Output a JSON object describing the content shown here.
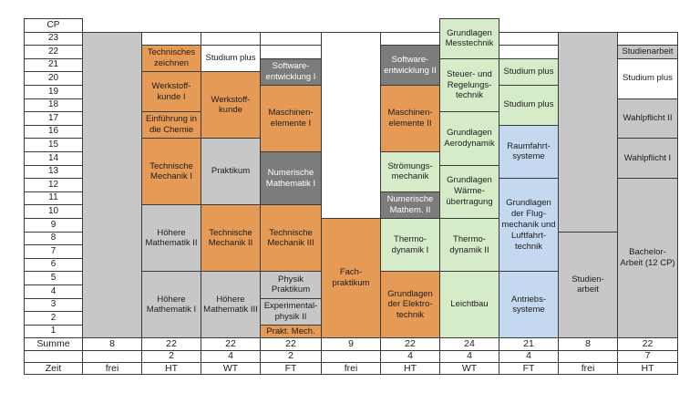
{
  "cp_header": "CP",
  "cp_values": [
    "23",
    "22",
    "21",
    "20",
    "19",
    "18",
    "17",
    "16",
    "15",
    "14",
    "13",
    "12",
    "11",
    "10",
    "9",
    "8",
    "7",
    "6",
    "5",
    "4",
    "3",
    "2",
    "1"
  ],
  "row_labels": {
    "summe": "Summe",
    "zeit": "Zeit"
  },
  "semesters": [
    {
      "summe": "8",
      "extra": "",
      "zeit": "frei",
      "blocks": [
        {
          "label": "",
          "cp": 23,
          "color": "gray",
          "from": 1
        }
      ]
    },
    {
      "summe": "22",
      "extra": "2",
      "zeit": "HT",
      "blocks": [
        {
          "label": "Höhere\nMathematik I",
          "color": "gray",
          "from": 1,
          "to": 5
        },
        {
          "label": "Höhere\nMathematik II",
          "color": "gray",
          "from": 6,
          "to": 10
        },
        {
          "label": "Technische\nMechanik I",
          "color": "orange",
          "from": 11,
          "to": 15
        },
        {
          "label": "Einführung in\ndie Chemie",
          "color": "orange",
          "from": 16,
          "to": 17
        },
        {
          "label": "Werkstoff-\nkunde I",
          "color": "orange",
          "from": 18,
          "to": 20
        },
        {
          "label": "Technisches\nzeichnen",
          "color": "orange",
          "from": 21,
          "to": 22
        },
        {
          "label": "",
          "color": "empty",
          "from": 23,
          "to": 23
        }
      ]
    },
    {
      "summe": "22",
      "extra": "4",
      "zeit": "WT",
      "blocks": [
        {
          "label": "Höhere\nMathematik III",
          "color": "gray",
          "from": 1,
          "to": 5
        },
        {
          "label": "Technische\nMechanik II",
          "color": "orange",
          "from": 6,
          "to": 10
        },
        {
          "label": "Praktikum",
          "color": "gray",
          "from": 11,
          "to": 15
        },
        {
          "label": "Werkstoff-\nkunde",
          "color": "orange",
          "from": 16,
          "to": 20
        },
        {
          "label": "Studium plus",
          "color": "empty",
          "from": 21,
          "to": 22
        },
        {
          "label": "",
          "color": "empty",
          "from": 23,
          "to": 23
        }
      ]
    },
    {
      "summe": "22",
      "extra": "2",
      "zeit": "FT",
      "blocks": [
        {
          "label": "Prakt. Mech.",
          "color": "orange",
          "from": 1,
          "to": 1
        },
        {
          "label": "Experimental-\nphysik II",
          "color": "gray",
          "from": 2,
          "to": 3
        },
        {
          "label": "Physik\nPraktikum",
          "color": "gray",
          "from": 4,
          "to": 5
        },
        {
          "label": "Technische\nMechanik III",
          "color": "orange",
          "from": 6,
          "to": 10
        },
        {
          "label": "Numerische\nMathematik I",
          "color": "dark",
          "from": 11,
          "to": 14
        },
        {
          "label": "Maschinen-\nelemente I",
          "color": "orange",
          "from": 15,
          "to": 19
        },
        {
          "label": "Software-\nentwicklung I",
          "color": "dark",
          "from": 20,
          "to": 21
        },
        {
          "label": "",
          "color": "empty",
          "from": 22,
          "to": 22
        },
        {
          "label": "",
          "color": "empty",
          "from": 23,
          "to": 23
        }
      ]
    },
    {
      "summe": "9",
      "extra": "",
      "zeit": "frei",
      "blocks": [
        {
          "label": "Fach-\npraktikum",
          "color": "orange",
          "from": 1,
          "to": 9
        },
        {
          "label": "",
          "color": "empty",
          "from": 10,
          "to": 23
        }
      ]
    },
    {
      "summe": "22",
      "extra": "4",
      "zeit": "HT",
      "blocks": [
        {
          "label": "Grundlagen\nder Elektro-\ntechnik",
          "color": "orange",
          "from": 1,
          "to": 5
        },
        {
          "label": "Thermo-\ndynamik I",
          "color": "green",
          "from": 6,
          "to": 9
        },
        {
          "label": "Numerische\nMathem. II",
          "color": "dark",
          "from": 10,
          "to": 11
        },
        {
          "label": "Strömungs-\nmechanik",
          "color": "green",
          "from": 12,
          "to": 14
        },
        {
          "label": "Maschinen-\nelemente II",
          "color": "orange",
          "from": 15,
          "to": 19
        },
        {
          "label": "Software-\nentwicklung II",
          "color": "dark",
          "from": 20,
          "to": 22
        },
        {
          "label": "",
          "color": "empty",
          "from": 23,
          "to": 23
        }
      ]
    },
    {
      "summe": "24",
      "extra": "4",
      "zeit": "WT",
      "blocks": [
        {
          "label": "Leichtbau",
          "color": "green",
          "from": 1,
          "to": 5
        },
        {
          "label": "Thermo-\ndynamik II",
          "color": "green",
          "from": 6,
          "to": 9
        },
        {
          "label": "Grundlagen\nWärme-\nübertragung",
          "color": "green",
          "from": 10,
          "to": 13
        },
        {
          "label": "Grundlagen\nAerodynamik",
          "color": "green",
          "from": 14,
          "to": 17
        },
        {
          "label": "Steuer- und\nRegelungs-\ntechnik",
          "color": "green",
          "from": 18,
          "to": 21
        },
        {
          "label": "Grundlagen\nMesstechnik",
          "color": "green",
          "from": 22,
          "to": 24
        }
      ]
    },
    {
      "summe": "21",
      "extra": "4",
      "zeit": "FT",
      "blocks": [
        {
          "label": "Antriebs-\nsysteme",
          "color": "blue",
          "from": 1,
          "to": 5
        },
        {
          "label": "Grundlagen\nder Flug-\nmechanik und\nLuftfahrt-\ntechnik",
          "color": "blue",
          "from": 6,
          "to": 12
        },
        {
          "label": "Raumfahrt-\nsysteme",
          "color": "blue",
          "from": 13,
          "to": 16
        },
        {
          "label": "Studium plus",
          "color": "green",
          "from": 17,
          "to": 19
        },
        {
          "label": "Studium plus",
          "color": "green",
          "from": 20,
          "to": 21
        },
        {
          "label": "",
          "color": "empty",
          "from": 22,
          "to": 22
        },
        {
          "label": "",
          "color": "empty",
          "from": 23,
          "to": 23
        }
      ]
    },
    {
      "summe": "8",
      "extra": "",
      "zeit": "frei",
      "blocks": [
        {
          "label": "Studien-\narbeit",
          "color": "gray",
          "from": 1,
          "to": 8
        },
        {
          "label": "",
          "color": "gray",
          "from": 9,
          "to": 23
        }
      ]
    },
    {
      "summe": "22",
      "extra": "7",
      "zeit": "HT",
      "blocks": [
        {
          "label": "Bachelor-\nArbeit (12 CP)",
          "color": "gray",
          "from": 1,
          "to": 12
        },
        {
          "label": "Wahlpflicht I",
          "color": "gray",
          "from": 13,
          "to": 15
        },
        {
          "label": "Wahlpflicht II",
          "color": "gray",
          "from": 16,
          "to": 18
        },
        {
          "label": "Studium plus",
          "color": "empty",
          "from": 19,
          "to": 21
        },
        {
          "label": "Studienarbeit",
          "color": "gray",
          "from": 22,
          "to": 22
        },
        {
          "label": "",
          "color": "empty",
          "from": 23,
          "to": 23
        }
      ]
    }
  ]
}
